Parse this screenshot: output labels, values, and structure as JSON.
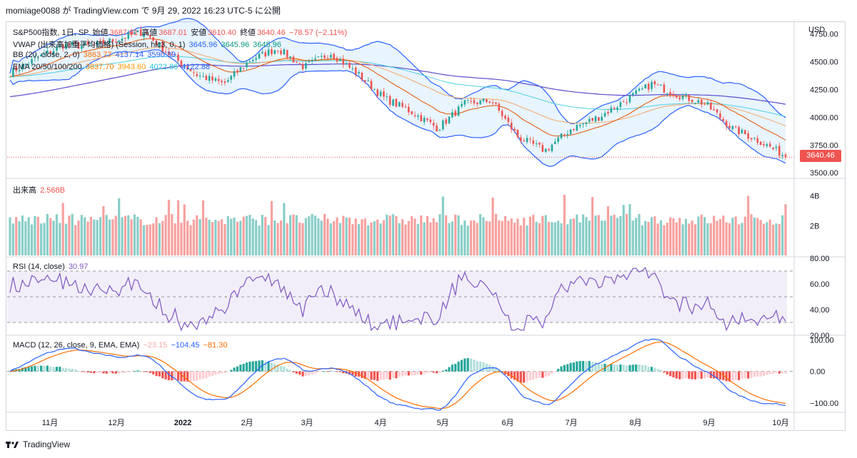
{
  "header": {
    "text": "momiage0088 が TradingView.com で 9月 29, 2022 16:23 UTC-5 に公開"
  },
  "footer": {
    "brand": "TradingView"
  },
  "colors": {
    "up": "#26a69a",
    "down": "#ef5350",
    "bb": "#2962ff",
    "vwap": "#2962ff",
    "ema20": "#f57c00",
    "ema50": "#ff9800",
    "ema100": "#4dd0e1",
    "ema200": "#5c4ccf",
    "rsi": "#7e57c2",
    "macd": "#2962ff",
    "signal": "#ff6d00"
  },
  "legends": {
    "main": {
      "symbol": "S&P500指数, 1日, SP",
      "open_label": "始値",
      "open": "3687.01",
      "high_label": "高値",
      "high": "3687.01",
      "low_label": "安値",
      "low": "3610.40",
      "close_label": "終値",
      "close": "3640.46",
      "change": "−78.57 (−2.11%)"
    },
    "vwap": {
      "label": "VWAP (出来高加重平均価格) (Session, hlc3, 0, 1)",
      "v1": "3645.96",
      "v2": "3645.96",
      "v3": "3645.96"
    },
    "bb": {
      "label": "BB (20, close, 2, 0)",
      "v1": "3863.77",
      "v2": "4137.14",
      "v3": "3590.39"
    },
    "ema": {
      "label": "EMA 20/50/100/200",
      "v1": "3837.70",
      "v2": "3943.60",
      "v3": "4022.86",
      "v4": "4122.88"
    },
    "volume": {
      "label": "出来高",
      "value": "2.568B"
    },
    "rsi": {
      "label": "RSI (14, close)",
      "value": "30.97"
    },
    "macd": {
      "label": "MACD (12, 26, close, 9, EMA, EMA)",
      "hist": "−23.15",
      "macd": "−104.45",
      "signal": "−81.30"
    }
  },
  "price_tag": "3640.46",
  "chart_data": [
    {
      "type": "candlestick",
      "title": "S&P500指数, 1日, SP",
      "ylabel": "USD",
      "ylim": [
        3450,
        4850
      ],
      "yticks": [
        "4750.00",
        "4500.00",
        "4250.00",
        "4000.00",
        "3750.00",
        "3500.00"
      ],
      "x_ticks": [
        "11月",
        "12月",
        "2022",
        "2月",
        "3月",
        "4月",
        "5月",
        "6月",
        "7月",
        "8月",
        "9月",
        "10月"
      ],
      "x": [
        "2021-10",
        "2021-11",
        "2021-12",
        "2022-01",
        "2022-02",
        "2022-03",
        "2022-04",
        "2022-05",
        "2022-06",
        "2022-07",
        "2022-08",
        "2022-09"
      ],
      "close_approx": [
        4580,
        4660,
        4770,
        4500,
        4370,
        4530,
        4130,
        4130,
        3790,
        4130,
        3950,
        3640
      ],
      "last_close": 3640.46
    },
    {
      "type": "bar",
      "title": "出来高",
      "yticks": [
        "4B",
        "2B"
      ],
      "last_value": "2.568B"
    },
    {
      "type": "line",
      "title": "RSI (14, close)",
      "yticks": [
        "80.00",
        "60.00",
        "40.00",
        "20.00"
      ],
      "ylim": [
        20,
        80
      ],
      "bands": [
        30,
        50,
        70
      ],
      "last_value": 30.97
    },
    {
      "type": "line",
      "title": "MACD (12, 26, close, 9, EMA, EMA)",
      "yticks": [
        "100.00",
        "0.00",
        "−100.00"
      ],
      "ylim": [
        -130,
        110
      ],
      "series": [
        {
          "name": "MACD",
          "last": -104.45
        },
        {
          "name": "Signal",
          "last": -81.3
        },
        {
          "name": "Histogram",
          "last": -23.15
        }
      ]
    }
  ]
}
